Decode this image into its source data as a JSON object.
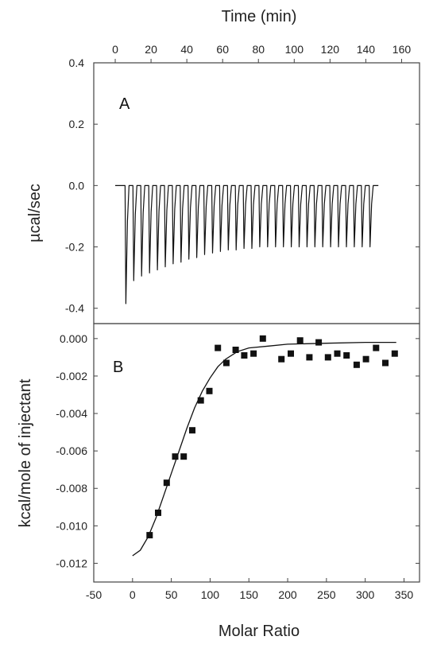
{
  "chart_data": [
    {
      "panel": "A",
      "type": "line",
      "title": "",
      "xlabel": "Time (min)",
      "ylabel": "µcal/sec",
      "xlim": [
        -12,
        170
      ],
      "ylim": [
        -0.45,
        0.4
      ],
      "x_ticks": [
        0,
        20,
        40,
        60,
        80,
        100,
        120,
        140,
        160
      ],
      "y_ticks": [
        -0.4,
        -0.2,
        0.0,
        0.2,
        0.4
      ],
      "x_tick_labels": [
        "0",
        "20",
        "40",
        "60",
        "80",
        "100",
        "120",
        "140",
        "160"
      ],
      "y_tick_labels": [
        "-0.4",
        "-0.2",
        "0.0",
        "0.2",
        "0.4"
      ],
      "baseline": 0.0,
      "baseline_range": [
        0,
        147
      ],
      "injection_times": [
        5.5,
        9.9,
        14.3,
        18.7,
        23.1,
        27.5,
        31.9,
        36.3,
        40.7,
        45.1,
        49.5,
        53.9,
        58.3,
        62.7,
        67.1,
        71.5,
        75.9,
        80.3,
        84.7,
        89.1,
        93.5,
        97.9,
        102.3,
        106.7,
        111.1,
        115.5,
        119.9,
        124.3,
        128.7,
        133.1,
        137.5,
        141.9
      ],
      "peak_values": [
        -0.385,
        -0.31,
        -0.295,
        -0.285,
        -0.275,
        -0.265,
        -0.255,
        -0.25,
        -0.24,
        -0.235,
        -0.225,
        -0.22,
        -0.215,
        -0.21,
        -0.21,
        -0.205,
        -0.205,
        -0.2,
        -0.2,
        -0.2,
        -0.2,
        -0.2,
        -0.2,
        -0.2,
        -0.2,
        -0.2,
        -0.2,
        -0.2,
        -0.2,
        -0.2,
        -0.2,
        -0.2
      ],
      "grid": false,
      "legend": "none"
    },
    {
      "panel": "B",
      "type": "scatter",
      "title": "",
      "xlabel": "Molar Ratio",
      "ylabel": "kcal/mole of injectant",
      "xlim": [
        -50,
        370
      ],
      "ylim": [
        -0.013,
        0.0008
      ],
      "x_ticks": [
        -50,
        0,
        50,
        100,
        150,
        200,
        250,
        300,
        350
      ],
      "y_ticks": [
        -0.012,
        -0.01,
        -0.008,
        -0.006,
        -0.004,
        -0.002,
        0.0
      ],
      "x_tick_labels": [
        "-50",
        "0",
        "50",
        "100",
        "150",
        "200",
        "250",
        "300",
        "350"
      ],
      "y_tick_labels": [
        "-0.012",
        "-0.010",
        "-0.008",
        "-0.006",
        "-0.004",
        "-0.002",
        "0.000"
      ],
      "points": [
        {
          "x": 22,
          "y": -0.0105
        },
        {
          "x": 33,
          "y": -0.0093
        },
        {
          "x": 44,
          "y": -0.0077
        },
        {
          "x": 55,
          "y": -0.0063
        },
        {
          "x": 66,
          "y": -0.0063
        },
        {
          "x": 77,
          "y": -0.0049
        },
        {
          "x": 88,
          "y": -0.0033
        },
        {
          "x": 99,
          "y": -0.0028
        },
        {
          "x": 110,
          "y": -0.0005
        },
        {
          "x": 121,
          "y": -0.0013
        },
        {
          "x": 133,
          "y": -0.0006
        },
        {
          "x": 144,
          "y": -0.0009
        },
        {
          "x": 156,
          "y": -0.0008
        },
        {
          "x": 168,
          "y": 0.0
        },
        {
          "x": 192,
          "y": -0.0011
        },
        {
          "x": 204,
          "y": -0.0008
        },
        {
          "x": 216,
          "y": -0.0001
        },
        {
          "x": 228,
          "y": -0.001
        },
        {
          "x": 240,
          "y": -0.0002
        },
        {
          "x": 252,
          "y": -0.001
        },
        {
          "x": 264,
          "y": -0.0008
        },
        {
          "x": 276,
          "y": -0.0009
        },
        {
          "x": 289,
          "y": -0.0014
        },
        {
          "x": 301,
          "y": -0.0011
        },
        {
          "x": 314,
          "y": -0.0005
        },
        {
          "x": 326,
          "y": -0.0013
        },
        {
          "x": 338,
          "y": -0.0008
        }
      ],
      "fit_curve": [
        {
          "x": 0,
          "y": -0.0116
        },
        {
          "x": 10,
          "y": -0.0113
        },
        {
          "x": 20,
          "y": -0.0106
        },
        {
          "x": 30,
          "y": -0.0096
        },
        {
          "x": 40,
          "y": -0.0084
        },
        {
          "x": 50,
          "y": -0.0072
        },
        {
          "x": 60,
          "y": -0.006
        },
        {
          "x": 70,
          "y": -0.0048
        },
        {
          "x": 80,
          "y": -0.0037
        },
        {
          "x": 90,
          "y": -0.0028
        },
        {
          "x": 100,
          "y": -0.0021
        },
        {
          "x": 110,
          "y": -0.0015
        },
        {
          "x": 120,
          "y": -0.0011
        },
        {
          "x": 135,
          "y": -0.0007
        },
        {
          "x": 150,
          "y": -0.0005
        },
        {
          "x": 175,
          "y": -0.0004
        },
        {
          "x": 200,
          "y": -0.0003
        },
        {
          "x": 250,
          "y": -0.00025
        },
        {
          "x": 300,
          "y": -0.0002
        },
        {
          "x": 340,
          "y": -0.0002
        }
      ],
      "grid": false,
      "legend": "none"
    }
  ]
}
